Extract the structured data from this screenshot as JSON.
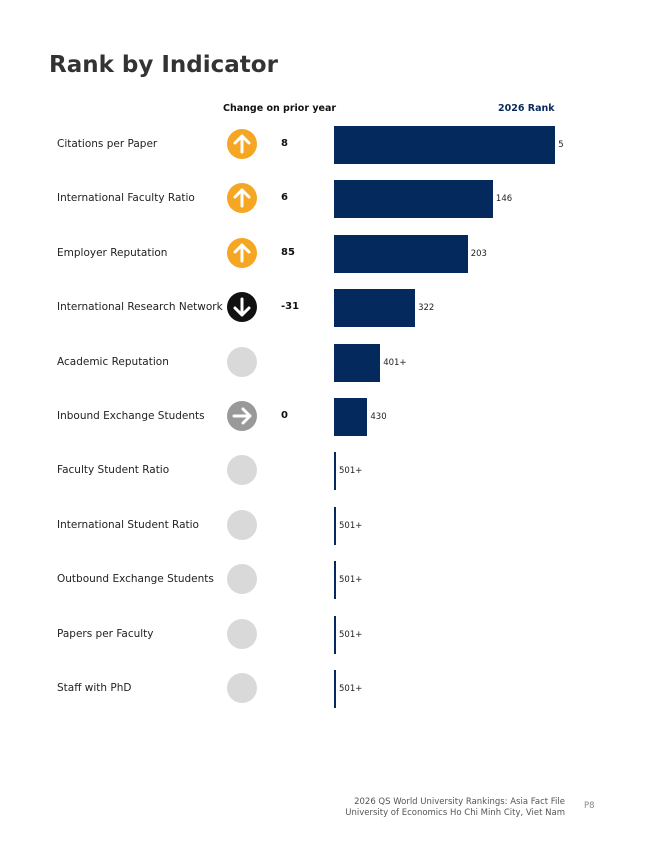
{
  "title": "Rank by Indicator",
  "headers": {
    "change": "Change on prior year",
    "rank": "2026 Rank"
  },
  "colors": {
    "bar": "#04295c",
    "up": "#f5a623",
    "down": "#111111",
    "same": "#999999",
    "none": "#d9d9d9"
  },
  "indicators": [
    {
      "label": "Citations per Paper",
      "trend": "up",
      "trend_icon": "arrow-up-icon",
      "change": "8",
      "rank": "5",
      "rank_value": 5
    },
    {
      "label": "International Faculty Ratio",
      "trend": "up",
      "trend_icon": "arrow-up-icon",
      "change": "6",
      "rank": "146",
      "rank_value": 146
    },
    {
      "label": "Employer Reputation",
      "trend": "up",
      "trend_icon": "arrow-up-icon",
      "change": "85",
      "rank": "203",
      "rank_value": 203
    },
    {
      "label": "International Research Network",
      "trend": "down",
      "trend_icon": "arrow-down-icon",
      "change": "-31",
      "rank": "322",
      "rank_value": 322
    },
    {
      "label": "Academic Reputation",
      "trend": "none",
      "trend_icon": "empty-circle-icon",
      "change": "",
      "rank": "401+",
      "rank_value": 401
    },
    {
      "label": "Inbound Exchange Students",
      "trend": "same",
      "trend_icon": "arrow-right-icon",
      "change": "0",
      "rank": "430",
      "rank_value": 430
    },
    {
      "label": "Faculty Student Ratio",
      "trend": "none",
      "trend_icon": "empty-circle-icon",
      "change": "",
      "rank": "501+",
      "rank_value": 501
    },
    {
      "label": "International Student Ratio",
      "trend": "none",
      "trend_icon": "empty-circle-icon",
      "change": "",
      "rank": "501+",
      "rank_value": 501
    },
    {
      "label": "Outbound Exchange Students",
      "trend": "none",
      "trend_icon": "empty-circle-icon",
      "change": "",
      "rank": "501+",
      "rank_value": 501
    },
    {
      "label": "Papers per Faculty",
      "trend": "none",
      "trend_icon": "empty-circle-icon",
      "change": "",
      "rank": "501+",
      "rank_value": 501
    },
    {
      "label": "Staff with PhD",
      "trend": "none",
      "trend_icon": "empty-circle-icon",
      "change": "",
      "rank": "501+",
      "rank_value": 501
    }
  ],
  "footer": {
    "line1": "2026 QS World University Rankings: Asia Fact File",
    "line2": "University of Economics Ho Chi Minh City, Viet Nam",
    "page": "P8"
  }
}
